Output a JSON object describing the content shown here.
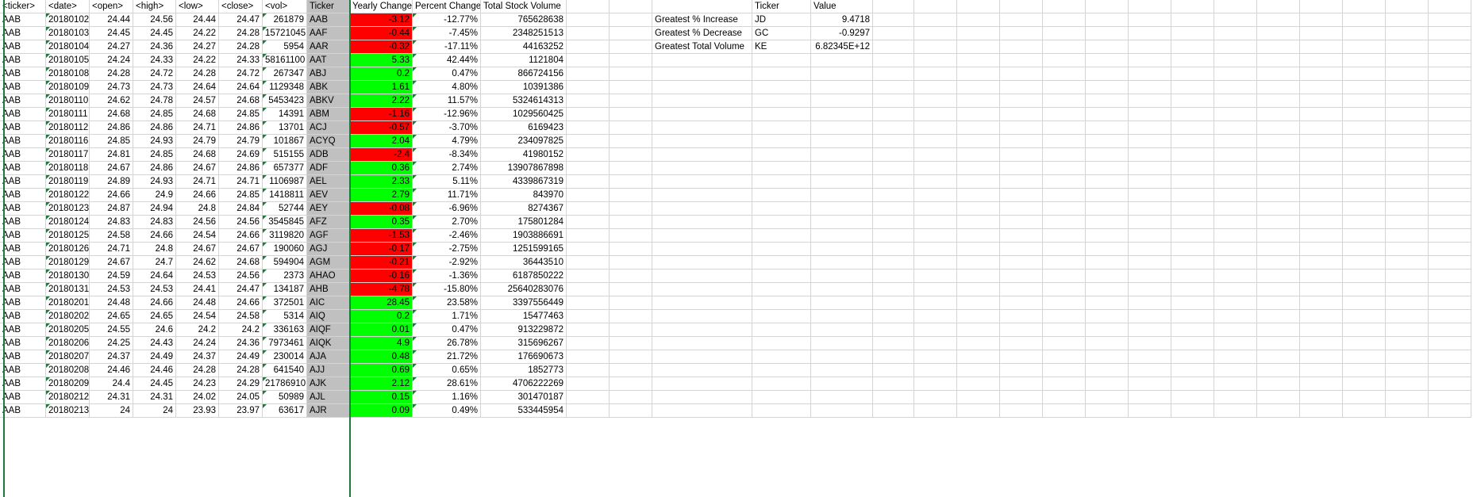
{
  "headers": [
    "<ticker>",
    "<date>",
    "<open>",
    "<high>",
    "<low>",
    "<close>",
    "<vol>",
    "Ticker",
    "Yearly Change",
    "Percent Change",
    "Total Stock Volume"
  ],
  "rows": [
    [
      "AAB",
      "20180102",
      "24.44",
      "24.56",
      "24.44",
      "24.47",
      "261879",
      "AAB",
      "-3.12",
      "-12.77%",
      "765628638"
    ],
    [
      "AAB",
      "20180103",
      "24.45",
      "24.45",
      "24.22",
      "24.28",
      "15721045",
      "AAF",
      "-0.44",
      "-7.45%",
      "2348251513"
    ],
    [
      "AAB",
      "20180104",
      "24.27",
      "24.36",
      "24.27",
      "24.28",
      "5954",
      "AAR",
      "-0.32",
      "-17.11%",
      "44163252"
    ],
    [
      "AAB",
      "20180105",
      "24.24",
      "24.33",
      "24.22",
      "24.33",
      "58161100",
      "AAT",
      "5.33",
      "42.44%",
      "1121804"
    ],
    [
      "AAB",
      "20180108",
      "24.28",
      "24.72",
      "24.28",
      "24.72",
      "267347",
      "ABJ",
      "0.2",
      "0.47%",
      "866724156"
    ],
    [
      "AAB",
      "20180109",
      "24.73",
      "24.73",
      "24.64",
      "24.64",
      "1129348",
      "ABK",
      "1.61",
      "4.80%",
      "10391386"
    ],
    [
      "AAB",
      "20180110",
      "24.62",
      "24.78",
      "24.57",
      "24.68",
      "5453423",
      "ABKV",
      "2.22",
      "11.57%",
      "5324614313"
    ],
    [
      "AAB",
      "20180111",
      "24.68",
      "24.85",
      "24.68",
      "24.85",
      "14391",
      "ABM",
      "-1.16",
      "-12.96%",
      "1029560425"
    ],
    [
      "AAB",
      "20180112",
      "24.86",
      "24.86",
      "24.71",
      "24.86",
      "13701",
      "ACJ",
      "-0.57",
      "-3.70%",
      "6169423"
    ],
    [
      "AAB",
      "20180116",
      "24.85",
      "24.93",
      "24.79",
      "24.79",
      "101867",
      "ACYQ",
      "2.04",
      "4.79%",
      "234097825"
    ],
    [
      "AAB",
      "20180117",
      "24.81",
      "24.85",
      "24.68",
      "24.69",
      "515155",
      "ADB",
      "-2.4",
      "-8.34%",
      "41980152"
    ],
    [
      "AAB",
      "20180118",
      "24.67",
      "24.86",
      "24.67",
      "24.86",
      "657377",
      "ADF",
      "0.36",
      "2.74%",
      "13907867898"
    ],
    [
      "AAB",
      "20180119",
      "24.89",
      "24.93",
      "24.71",
      "24.71",
      "1106987",
      "AEL",
      "2.33",
      "5.11%",
      "4339867319"
    ],
    [
      "AAB",
      "20180122",
      "24.66",
      "24.9",
      "24.66",
      "24.85",
      "1418811",
      "AEV",
      "2.79",
      "11.71%",
      "843970"
    ],
    [
      "AAB",
      "20180123",
      "24.87",
      "24.94",
      "24.8",
      "24.84",
      "52744",
      "AEY",
      "-0.08",
      "-6.96%",
      "8274367"
    ],
    [
      "AAB",
      "20180124",
      "24.83",
      "24.83",
      "24.56",
      "24.56",
      "3545845",
      "AFZ",
      "0.35",
      "2.70%",
      "175801284"
    ],
    [
      "AAB",
      "20180125",
      "24.58",
      "24.66",
      "24.54",
      "24.66",
      "3119820",
      "AGF",
      "-1.53",
      "-2.46%",
      "1903886691"
    ],
    [
      "AAB",
      "20180126",
      "24.71",
      "24.8",
      "24.67",
      "24.67",
      "190060",
      "AGJ",
      "-0.17",
      "-2.75%",
      "1251599165"
    ],
    [
      "AAB",
      "20180129",
      "24.67",
      "24.7",
      "24.62",
      "24.68",
      "594904",
      "AGM",
      "-0.21",
      "-2.92%",
      "36443510"
    ],
    [
      "AAB",
      "20180130",
      "24.59",
      "24.64",
      "24.53",
      "24.56",
      "2373",
      "AHAO",
      "-0.16",
      "-1.36%",
      "6187850222"
    ],
    [
      "AAB",
      "20180131",
      "24.53",
      "24.53",
      "24.41",
      "24.47",
      "134187",
      "AHB",
      "-4.78",
      "-15.80%",
      "25640283076"
    ],
    [
      "AAB",
      "20180201",
      "24.48",
      "24.66",
      "24.48",
      "24.66",
      "372501",
      "AIC",
      "28.45",
      "23.58%",
      "3397556449"
    ],
    [
      "AAB",
      "20180202",
      "24.65",
      "24.65",
      "24.54",
      "24.58",
      "5314",
      "AIQ",
      "0.2",
      "1.71%",
      "15477463"
    ],
    [
      "AAB",
      "20180205",
      "24.55",
      "24.6",
      "24.2",
      "24.2",
      "336163",
      "AIQF",
      "0.01",
      "0.47%",
      "913229872"
    ],
    [
      "AAB",
      "20180206",
      "24.25",
      "24.43",
      "24.24",
      "24.36",
      "7973461",
      "AIQK",
      "4.9",
      "26.78%",
      "315696267"
    ],
    [
      "AAB",
      "20180207",
      "24.37",
      "24.49",
      "24.37",
      "24.49",
      "230014",
      "AJA",
      "0.48",
      "21.72%",
      "176690673"
    ],
    [
      "AAB",
      "20180208",
      "24.46",
      "24.46",
      "24.28",
      "24.28",
      "641540",
      "AJJ",
      "0.69",
      "0.65%",
      "1852773"
    ],
    [
      "AAB",
      "20180209",
      "24.4",
      "24.45",
      "24.23",
      "24.29",
      "21786910",
      "AJK",
      "2.12",
      "28.61%",
      "4706222269"
    ],
    [
      "AAB",
      "20180212",
      "24.31",
      "24.31",
      "24.02",
      "24.05",
      "50989",
      "AJL",
      "0.15",
      "1.16%",
      "301470187"
    ],
    [
      "AAB",
      "20180213",
      "24",
      "24",
      "23.93",
      "23.97",
      "63617",
      "AJR",
      "0.09",
      "0.49%",
      "533445954"
    ]
  ],
  "summary": {
    "headers": [
      "Ticker",
      "Value"
    ],
    "rows": [
      [
        "Greatest % Increase",
        "JD",
        "9.4718"
      ],
      [
        "Greatest % Decrease",
        "GC",
        "-0.9297"
      ],
      [
        "Greatest Total Volume",
        "KE",
        "6.82345E+12"
      ]
    ]
  },
  "colors": {
    "positive_fill": "#00ff00",
    "negative_fill": "#ff0000",
    "ticker_column_fill": "#c0c0c0",
    "gridline": "#d4d4d4"
  }
}
